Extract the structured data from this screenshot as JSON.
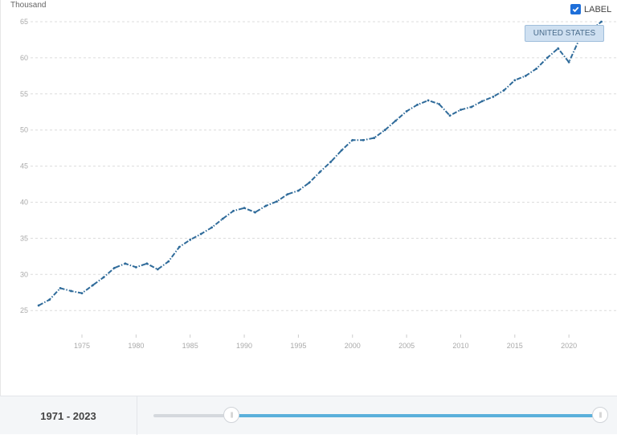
{
  "chart": {
    "unit_label": "Thousand",
    "series_label": "UNITED STATES",
    "label_toggle": {
      "label": "LABEL",
      "checked": true
    },
    "line_color": "#2f6b9a"
  },
  "footer": {
    "range_text": "1971 - 2023",
    "slider": {
      "min": 1960,
      "max": 2023,
      "start": 1971,
      "end": 2023,
      "fill_color": "#5ab0db"
    }
  },
  "chart_data": {
    "type": "line",
    "title": "",
    "xlabel": "",
    "ylabel": "Thousand",
    "ylim": [
      22,
      65
    ],
    "yticks": [
      25,
      30,
      35,
      40,
      45,
      50,
      55,
      60,
      65
    ],
    "xticks": [
      1975,
      1980,
      1985,
      1990,
      1995,
      2000,
      2005,
      2010,
      2015,
      2020
    ],
    "grid": true,
    "legend": "none",
    "series": [
      {
        "name": "UNITED STATES",
        "x": [
          1971,
          1972,
          1973,
          1974,
          1975,
          1976,
          1977,
          1978,
          1979,
          1980,
          1981,
          1982,
          1983,
          1984,
          1985,
          1986,
          1987,
          1988,
          1989,
          1990,
          1991,
          1992,
          1993,
          1994,
          1995,
          1996,
          1997,
          1998,
          1999,
          2000,
          2001,
          2002,
          2003,
          2004,
          2005,
          2006,
          2007,
          2008,
          2009,
          2010,
          2011,
          2012,
          2013,
          2014,
          2015,
          2016,
          2017,
          2018,
          2019,
          2020,
          2021,
          2022,
          2023
        ],
        "values": [
          25.7,
          26.5,
          28.1,
          27.7,
          27.4,
          28.5,
          29.6,
          30.9,
          31.5,
          31.0,
          31.5,
          30.7,
          31.8,
          33.8,
          34.8,
          35.6,
          36.5,
          37.7,
          38.8,
          39.2,
          38.6,
          39.5,
          40.1,
          41.1,
          41.6,
          42.7,
          44.2,
          45.6,
          47.2,
          48.6,
          48.6,
          48.9,
          50.0,
          51.3,
          52.6,
          53.5,
          54.1,
          53.6,
          52.0,
          52.8,
          53.2,
          54.0,
          54.6,
          55.5,
          56.9,
          57.5,
          58.5,
          60.0,
          61.3,
          59.4,
          62.7,
          63.8,
          65.0
        ]
      }
    ]
  }
}
